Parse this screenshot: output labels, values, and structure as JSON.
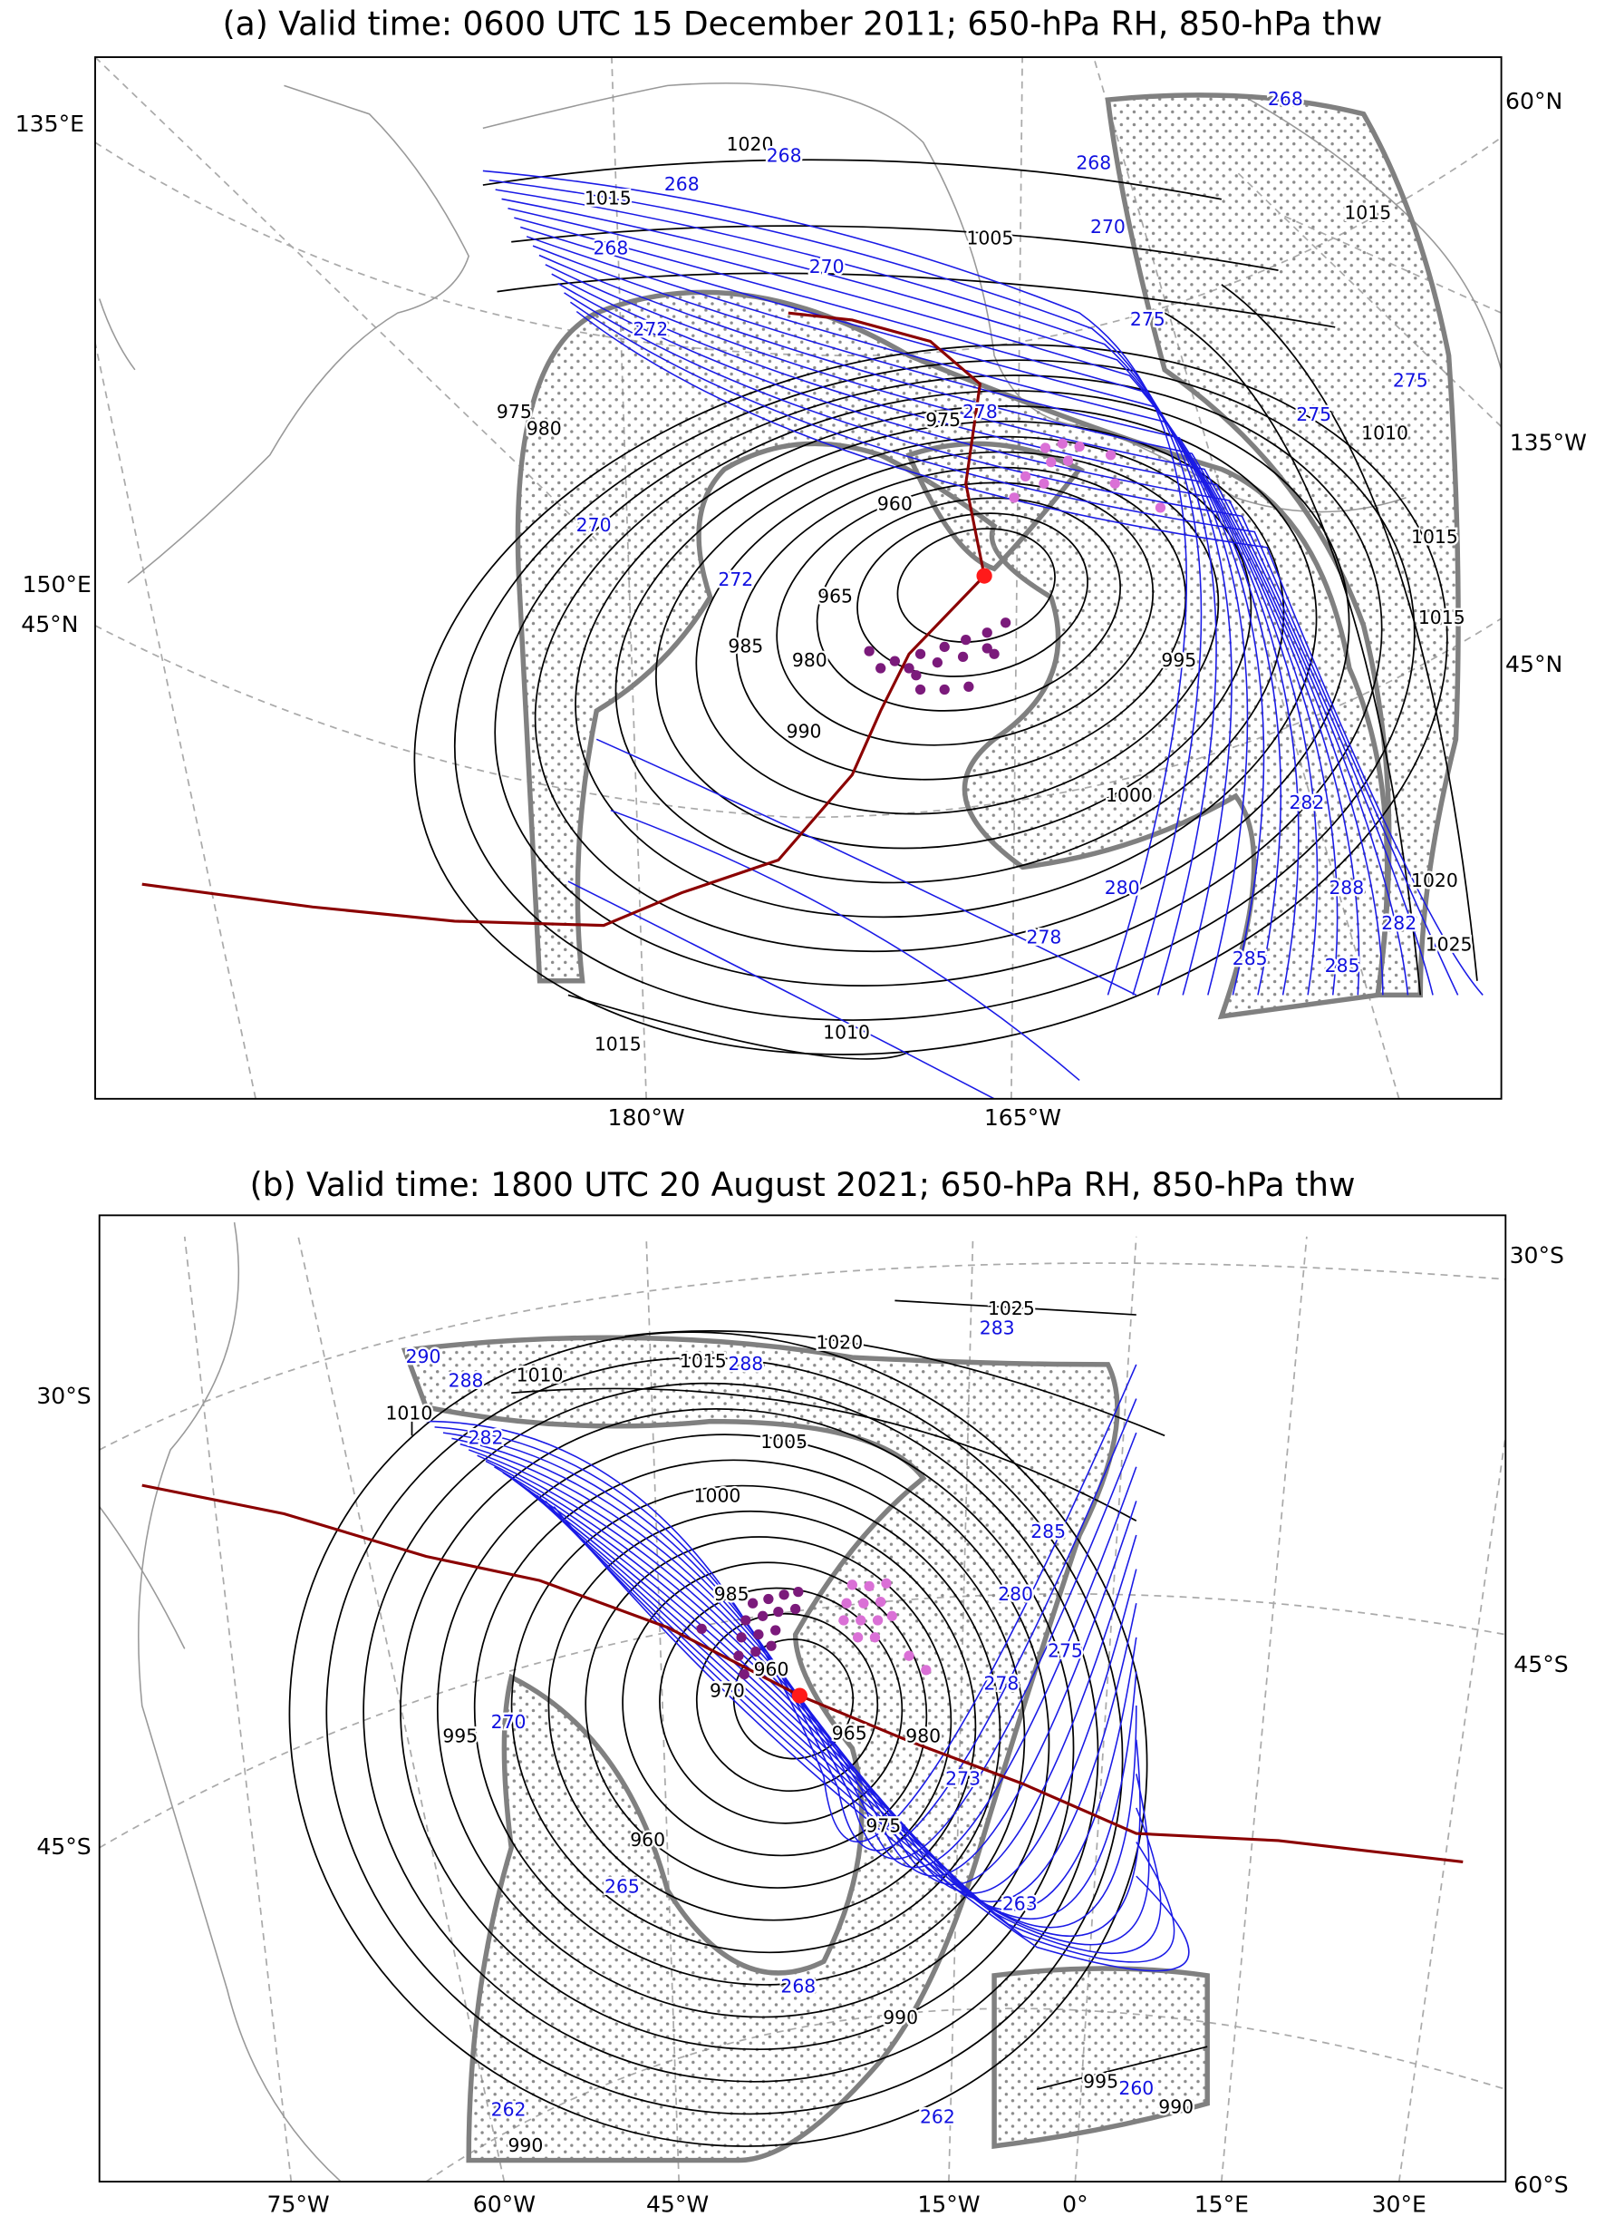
{
  "panels": [
    {
      "title": "(a) Valid time: 0600 UTC 15 December 2011;  650-hPa RH,  850-hPa thw",
      "lat_lon_labels": [
        "135°E",
        "60°N",
        "135°W",
        "150°E",
        "45°N",
        "45°N",
        "180°W",
        "165°W"
      ],
      "isobar_labels": [
        1020,
        1015,
        1005,
        975,
        980,
        975,
        960,
        965,
        985,
        980,
        990,
        995,
        1000,
        1010,
        1015,
        1020,
        1025,
        1010,
        1015,
        1015,
        1015
      ],
      "thw_labels": [
        268,
        268,
        268,
        268,
        268,
        270,
        270,
        272,
        275,
        275,
        275,
        278,
        270,
        272,
        278,
        280,
        282,
        288,
        285,
        285,
        282
      ]
    },
    {
      "title": "(b) Valid time: 1800 UTC 20 August 2021;  650-hPa RH,  850-hPa thw",
      "lat_lon_labels": [
        "30°S",
        "30°S",
        "45°S",
        "45°S",
        "60°S",
        "75°W",
        "60°W",
        "45°W",
        "15°W",
        "0°",
        "15°E",
        "30°E"
      ],
      "isobar_labels": [
        1025,
        1020,
        1015,
        1010,
        1010,
        1005,
        1000,
        985,
        960,
        970,
        965,
        980,
        975,
        995,
        960,
        990,
        995,
        990,
        990
      ],
      "thw_labels": [
        283,
        288,
        290,
        288,
        282,
        285,
        280,
        278,
        275,
        273,
        270,
        265,
        263,
        268,
        262,
        262,
        260
      ]
    }
  ]
}
